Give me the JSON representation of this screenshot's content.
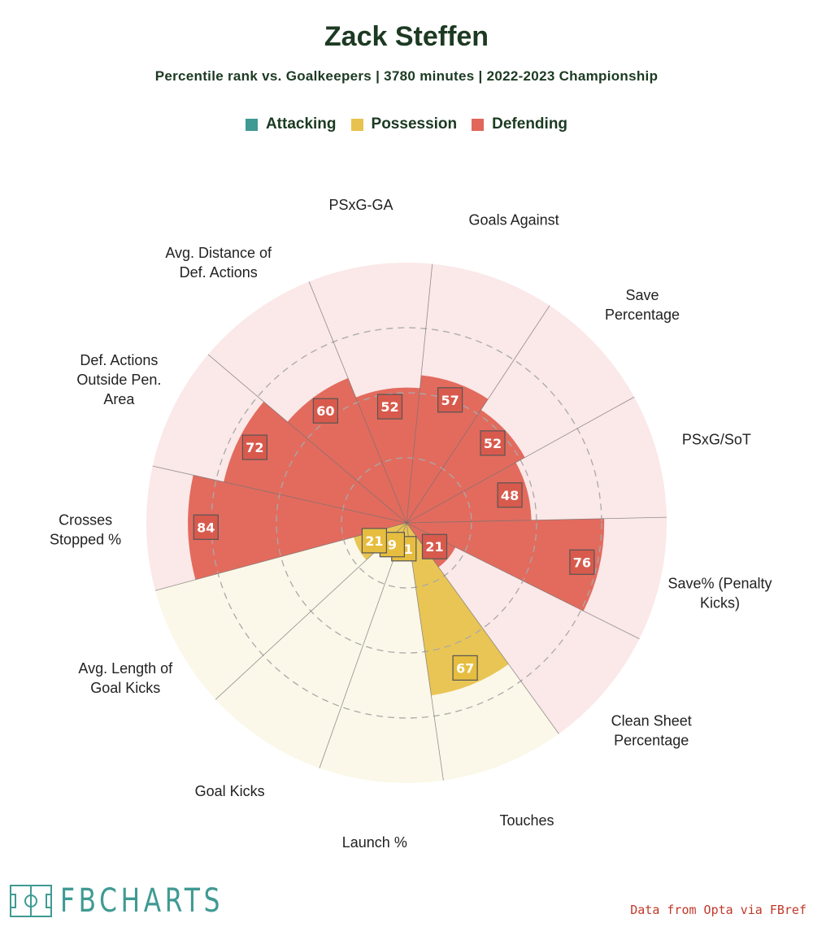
{
  "title": "Zack Steffen",
  "subtitle": "Percentile rank vs. Goalkeepers | 3780 minutes | 2022-2023 Championship",
  "legend": [
    {
      "label": "Attacking",
      "color": "#3f9a93"
    },
    {
      "label": "Possession",
      "color": "#e8c24f"
    },
    {
      "label": "Defending",
      "color": "#e0675a"
    }
  ],
  "colors": {
    "defending_fill": "#e26b5e",
    "defending_bg": "#fbe8e8",
    "possession_fill": "#e9c555",
    "possession_bg": "#fbf8e9",
    "value_box_stroke": "#555555",
    "grid_line": "#bbbbbb"
  },
  "chart_data": {
    "type": "radar",
    "title": "Zack Steffen",
    "subtitle": "Percentile rank vs. Goalkeepers | 3780 minutes | 2022-2023 Championship",
    "rlim": [
      0,
      100
    ],
    "gridlines": [
      25,
      50,
      75
    ],
    "metrics": [
      {
        "label": "PSxG-GA",
        "value": 52,
        "category": "Defending"
      },
      {
        "label": "Goals Against",
        "value": 57,
        "category": "Defending"
      },
      {
        "label": "Save Percentage",
        "value": 52,
        "category": "Defending"
      },
      {
        "label": "PSxG/SoT",
        "value": 48,
        "category": "Defending"
      },
      {
        "label": "Save% (Penalty Kicks)",
        "value": 76,
        "category": "Defending"
      },
      {
        "label": "Clean Sheet Percentage",
        "value": 21,
        "category": "Defending"
      },
      {
        "label": "Touches",
        "value": 67,
        "category": "Possession"
      },
      {
        "label": "Launch %",
        "value": 11,
        "category": "Possession"
      },
      {
        "label": "Goal Kicks",
        "value": 9,
        "category": "Possession"
      },
      {
        "label": "Avg. Length of Goal Kicks",
        "value": 21,
        "category": "Possession"
      },
      {
        "label": "Crosses Stopped %",
        "value": 84,
        "category": "Defending"
      },
      {
        "label": "Def. Actions Outside Pen. Area",
        "value": 72,
        "category": "Defending"
      },
      {
        "label": "Avg. Distance of Def. Actions",
        "value": 60,
        "category": "Defending"
      }
    ],
    "label_lines": [
      [
        "PSxG-GA"
      ],
      [
        "Goals Against"
      ],
      [
        "Save",
        "Percentage"
      ],
      [
        "PSxG/SoT"
      ],
      [
        "Save% (Penalty",
        "Kicks)"
      ],
      [
        "Clean Sheet",
        "Percentage"
      ],
      [
        "Touches"
      ],
      [
        "Launch %"
      ],
      [
        "Goal Kicks"
      ],
      [
        "Avg. Length of",
        "Goal Kicks"
      ],
      [
        "Crosses",
        "Stopped %"
      ],
      [
        "Def. Actions",
        "Outside Pen.",
        "Area"
      ],
      [
        "Avg. Distance of",
        "Def. Actions"
      ]
    ]
  },
  "footer": {
    "logo_text": "FBCHARTS",
    "source": "Data from Opta via FBref"
  }
}
